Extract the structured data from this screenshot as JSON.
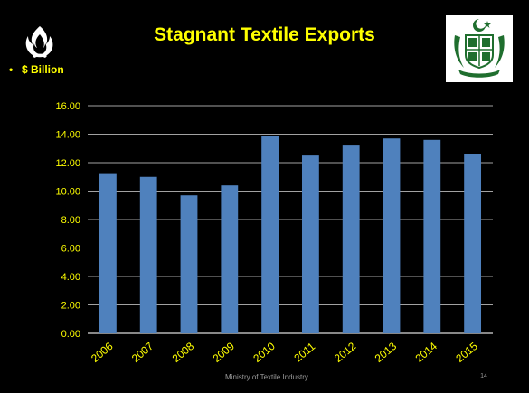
{
  "slide": {
    "title": "Stagnant Textile Exports",
    "bullet": "$ Billion",
    "footer": "Ministry of Textile Industry",
    "page_number": "14"
  },
  "colors": {
    "background": "#000000",
    "title": "#ffff00",
    "bar": "#4f81bd",
    "gridline": "#d9d9d9",
    "tick_label": "#ffff00",
    "emblem_green": "#1f6e2e"
  },
  "icons": {
    "left_logo": "flame-logo-icon",
    "right_logo": "pakistan-emblem-icon"
  },
  "chart_data": {
    "type": "bar",
    "categories": [
      "2006",
      "2007",
      "2008",
      "2009",
      "2010",
      "2011",
      "2012",
      "2013",
      "2014",
      "2015"
    ],
    "series": [
      {
        "values": [
          11.2,
          11.0,
          9.7,
          10.4,
          13.9,
          12.5,
          13.2,
          13.7,
          13.6,
          12.6
        ]
      }
    ],
    "y_ticks": [
      "0.00",
      "2.00",
      "4.00",
      "6.00",
      "8.00",
      "10.00",
      "12.00",
      "14.00",
      "16.00"
    ],
    "ylim": [
      0,
      16
    ],
    "grid": true,
    "legend": "none",
    "title": "",
    "xlabel": "",
    "ylabel": ""
  }
}
